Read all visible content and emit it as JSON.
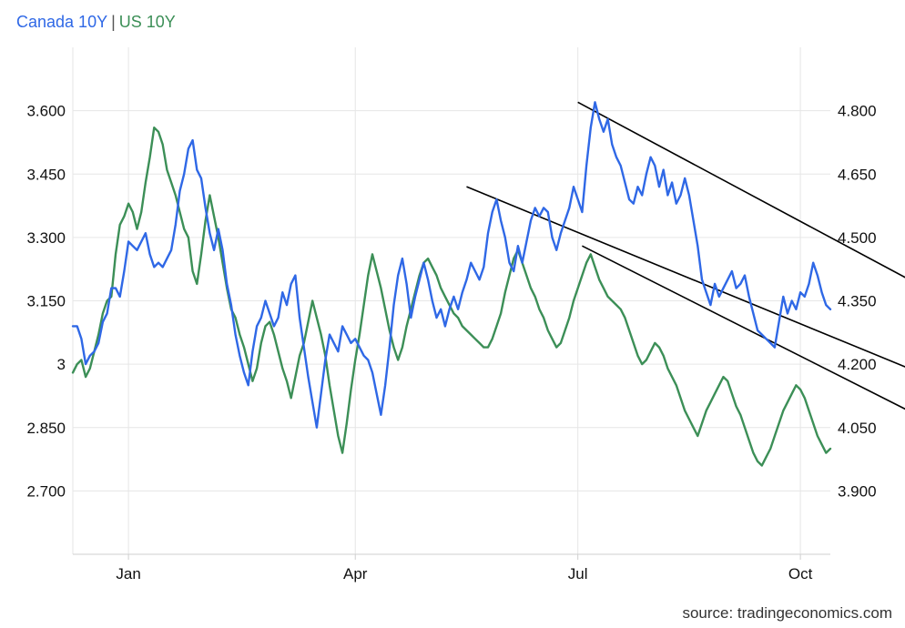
{
  "legend": {
    "canada": "Canada 10Y",
    "separator": "|",
    "us": "US 10Y"
  },
  "source": "source: tradingeconomics.com",
  "colors": {
    "canada": "#2f68e6",
    "us": "#3c8f57",
    "trendline": "#000000",
    "grid": "#e6e6e6"
  },
  "chart_data": {
    "type": "line",
    "grid": true,
    "legend_position": "top-left",
    "x_tick_labels": [
      "Jan",
      "Apr",
      "Jul",
      "Oct"
    ],
    "x_ticks_at_index": [
      13,
      66,
      118,
      170
    ],
    "left_axis": {
      "series": "Canada 10Y",
      "ticks": [
        2.7,
        2.85,
        3.0,
        3.15,
        3.3,
        3.45,
        3.6
      ],
      "tick_labels": [
        "2.700",
        "2.850",
        "3",
        "3.150",
        "3.300",
        "3.450",
        "3.600"
      ],
      "range": [
        2.55,
        3.75
      ]
    },
    "right_axis": {
      "series": "US 10Y",
      "ticks": [
        3.9,
        4.05,
        4.2,
        4.35,
        4.5,
        4.65,
        4.8
      ],
      "tick_labels": [
        "3.900",
        "4.050",
        "4.200",
        "4.350",
        "4.500",
        "4.650",
        "4.800"
      ],
      "range": [
        3.75,
        4.95
      ]
    },
    "series": [
      {
        "name": "Canada 10Y",
        "axis": "left",
        "values": [
          3.09,
          3.09,
          3.06,
          3.0,
          3.02,
          3.03,
          3.05,
          3.1,
          3.12,
          3.18,
          3.18,
          3.16,
          3.22,
          3.29,
          3.28,
          3.27,
          3.29,
          3.31,
          3.26,
          3.23,
          3.24,
          3.23,
          3.25,
          3.27,
          3.33,
          3.41,
          3.45,
          3.51,
          3.53,
          3.46,
          3.44,
          3.37,
          3.31,
          3.27,
          3.32,
          3.27,
          3.19,
          3.14,
          3.07,
          3.02,
          2.98,
          2.95,
          3.03,
          3.09,
          3.11,
          3.15,
          3.12,
          3.09,
          3.11,
          3.17,
          3.14,
          3.19,
          3.21,
          3.11,
          3.04,
          2.97,
          2.91,
          2.85,
          2.93,
          3.01,
          3.07,
          3.05,
          3.03,
          3.09,
          3.07,
          3.05,
          3.06,
          3.04,
          3.02,
          3.01,
          2.98,
          2.93,
          2.88,
          2.95,
          3.04,
          3.14,
          3.21,
          3.25,
          3.19,
          3.11,
          3.16,
          3.2,
          3.24,
          3.2,
          3.15,
          3.11,
          3.13,
          3.09,
          3.13,
          3.16,
          3.13,
          3.17,
          3.2,
          3.24,
          3.22,
          3.2,
          3.23,
          3.31,
          3.36,
          3.39,
          3.34,
          3.3,
          3.24,
          3.22,
          3.28,
          3.24,
          3.29,
          3.34,
          3.37,
          3.35,
          3.37,
          3.36,
          3.3,
          3.27,
          3.31,
          3.34,
          3.37,
          3.42,
          3.39,
          3.36,
          3.47,
          3.56,
          3.62,
          3.58,
          3.55,
          3.58,
          3.52,
          3.49,
          3.47,
          3.43,
          3.39,
          3.38,
          3.42,
          3.4,
          3.45,
          3.49,
          3.47,
          3.42,
          3.46,
          3.4,
          3.43,
          3.38,
          3.4,
          3.44,
          3.4,
          3.34,
          3.28,
          3.2,
          3.17,
          3.14,
          3.19,
          3.16,
          3.18,
          3.2,
          3.22,
          3.18,
          3.19,
          3.21,
          3.16,
          3.12,
          3.08,
          3.07,
          3.06,
          3.05,
          3.04,
          3.1,
          3.16,
          3.12,
          3.15,
          3.13,
          3.17,
          3.16,
          3.19,
          3.24,
          3.21,
          3.17,
          3.14,
          3.13
        ]
      },
      {
        "name": "US 10Y",
        "axis": "right",
        "values": [
          4.18,
          4.2,
          4.21,
          4.17,
          4.19,
          4.23,
          4.27,
          4.32,
          4.35,
          4.36,
          4.46,
          4.53,
          4.55,
          4.58,
          4.56,
          4.52,
          4.56,
          4.63,
          4.69,
          4.76,
          4.75,
          4.72,
          4.66,
          4.63,
          4.6,
          4.56,
          4.52,
          4.5,
          4.42,
          4.39,
          4.46,
          4.54,
          4.6,
          4.55,
          4.5,
          4.44,
          4.38,
          4.33,
          4.31,
          4.27,
          4.24,
          4.2,
          4.16,
          4.19,
          4.25,
          4.29,
          4.3,
          4.27,
          4.23,
          4.19,
          4.16,
          4.12,
          4.17,
          4.22,
          4.25,
          4.3,
          4.35,
          4.31,
          4.27,
          4.22,
          4.15,
          4.09,
          4.03,
          3.99,
          4.06,
          4.14,
          4.21,
          4.27,
          4.34,
          4.41,
          4.46,
          4.42,
          4.38,
          4.33,
          4.28,
          4.24,
          4.21,
          4.24,
          4.29,
          4.33,
          4.37,
          4.41,
          4.44,
          4.45,
          4.43,
          4.41,
          4.38,
          4.36,
          4.34,
          4.32,
          4.31,
          4.29,
          4.28,
          4.27,
          4.26,
          4.25,
          4.24,
          4.24,
          4.26,
          4.29,
          4.32,
          4.37,
          4.41,
          4.45,
          4.47,
          4.44,
          4.41,
          4.38,
          4.36,
          4.33,
          4.31,
          4.28,
          4.26,
          4.24,
          4.25,
          4.28,
          4.31,
          4.35,
          4.38,
          4.41,
          4.44,
          4.46,
          4.43,
          4.4,
          4.38,
          4.36,
          4.35,
          4.34,
          4.33,
          4.31,
          4.28,
          4.25,
          4.22,
          4.2,
          4.21,
          4.23,
          4.25,
          4.24,
          4.22,
          4.19,
          4.17,
          4.15,
          4.12,
          4.09,
          4.07,
          4.05,
          4.03,
          4.06,
          4.09,
          4.11,
          4.13,
          4.15,
          4.17,
          4.16,
          4.13,
          4.1,
          4.08,
          4.05,
          4.02,
          3.99,
          3.97,
          3.96,
          3.98,
          4.0,
          4.03,
          4.06,
          4.09,
          4.11,
          4.13,
          4.15,
          4.14,
          4.12,
          4.09,
          4.06,
          4.03,
          4.01,
          3.99,
          4.0
        ]
      }
    ],
    "trendlines": [
      {
        "axis": "left",
        "from": [
          118,
          3.62
        ],
        "to": [
          201,
          3.17
        ]
      },
      {
        "axis": "left",
        "from": [
          92,
          3.42
        ],
        "to": [
          205,
          2.95
        ]
      },
      {
        "axis": "left",
        "from": [
          119,
          3.28
        ],
        "to": [
          205,
          2.84
        ]
      }
    ]
  }
}
